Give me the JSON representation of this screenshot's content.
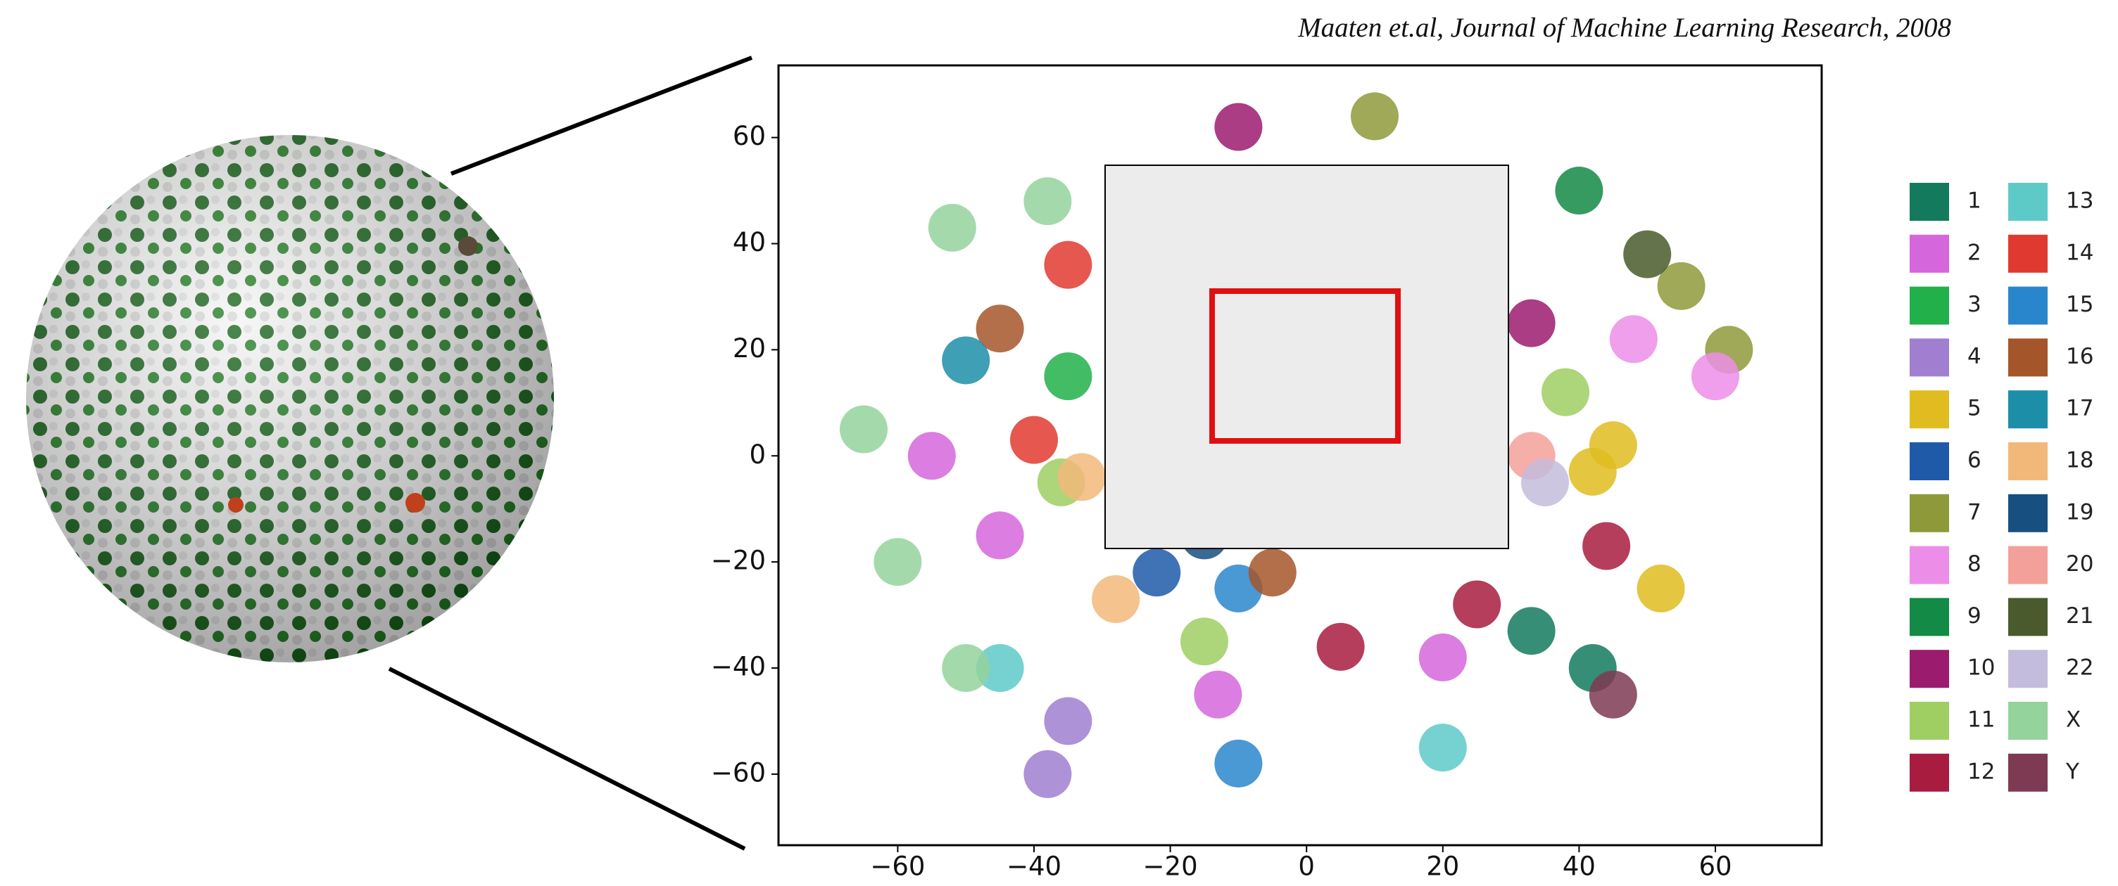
{
  "citation": "Maaten et.al, Journal of Machine Learning Research, 2008",
  "chart_data": {
    "type": "scatter",
    "xlim": [
      -77.5,
      75.6
    ],
    "ylim": [
      -73.4,
      73.6
    ],
    "xticks": [
      {
        "value": -60,
        "label": "−60"
      },
      {
        "value": -40,
        "label": "−40"
      },
      {
        "value": -20,
        "label": "−20"
      },
      0,
      20,
      40,
      60
    ],
    "yticks": [
      {
        "value": -60,
        "label": "−60"
      },
      {
        "value": -40,
        "label": "−40"
      },
      {
        "value": -20,
        "label": "−20"
      },
      0,
      20,
      40,
      60
    ],
    "series": [
      {
        "name": "1",
        "color": "#137a5e",
        "x": [
          33,
          42
        ],
        "values": [
          -33,
          -40
        ]
      },
      {
        "name": "2",
        "color": "#d566dc",
        "x": [
          -55,
          -45,
          -13,
          20
        ],
        "values": [
          0,
          -15,
          -45,
          -38
        ]
      },
      {
        "name": "3",
        "color": "#22b04b",
        "x": [
          -35
        ],
        "values": [
          15
        ]
      },
      {
        "name": "4",
        "color": "#a07fd0",
        "x": [
          -35,
          -38
        ],
        "values": [
          -50,
          -60
        ]
      },
      {
        "name": "5",
        "color": "#e0bc20",
        "x": [
          45,
          52,
          42
        ],
        "values": [
          2,
          -25,
          -3
        ]
      },
      {
        "name": "6",
        "color": "#1e5aa8",
        "x": [
          -22
        ],
        "values": [
          -22
        ]
      },
      {
        "name": "7",
        "color": "#8e9a3a",
        "x": [
          10,
          55,
          62
        ],
        "values": [
          64,
          32,
          20
        ]
      },
      {
        "name": "8",
        "color": "#ec8ee8",
        "x": [
          60,
          48
        ],
        "values": [
          15,
          22
        ]
      },
      {
        "name": "9",
        "color": "#138a45",
        "x": [
          40
        ],
        "values": [
          50
        ]
      },
      {
        "name": "10",
        "color": "#9b1b6e",
        "x": [
          -10,
          33
        ],
        "values": [
          62,
          25
        ]
      },
      {
        "name": "11",
        "color": "#9fce62",
        "x": [
          -36,
          38,
          -15
        ],
        "values": [
          -5,
          12,
          -35
        ]
      },
      {
        "name": "12",
        "color": "#a81c40",
        "x": [
          5,
          44,
          25
        ],
        "values": [
          -36,
          -17,
          -28
        ]
      },
      {
        "name": "13",
        "color": "#5ecac8",
        "x": [
          -45,
          20
        ],
        "values": [
          -40,
          -55
        ]
      },
      {
        "name": "14",
        "color": "#e03a30",
        "x": [
          -35,
          -40
        ],
        "values": [
          36,
          3
        ]
      },
      {
        "name": "15",
        "color": "#2a86cc",
        "x": [
          -10,
          -10
        ],
        "values": [
          -25,
          -58
        ]
      },
      {
        "name": "16",
        "color": "#a4562a",
        "x": [
          -45,
          -5
        ],
        "values": [
          24,
          -22
        ]
      },
      {
        "name": "17",
        "color": "#1d8ea8",
        "x": [
          -50
        ],
        "values": [
          18
        ]
      },
      {
        "name": "18",
        "color": "#f2b87a",
        "x": [
          -28,
          -33
        ],
        "values": [
          -27,
          -4
        ]
      },
      {
        "name": "19",
        "color": "#174f80",
        "x": [
          -15
        ],
        "values": [
          -15
        ]
      },
      {
        "name": "20",
        "color": "#f4a09a",
        "x": [
          33
        ],
        "values": [
          0
        ]
      },
      {
        "name": "21",
        "color": "#4a5a2c",
        "x": [
          50
        ],
        "values": [
          38
        ]
      },
      {
        "name": "22",
        "color": "#c4bcdc",
        "x": [
          35
        ],
        "values": [
          -5
        ]
      },
      {
        "name": "X",
        "color": "#94d39c",
        "x": [
          -52,
          -38,
          -65,
          -60,
          -50
        ],
        "values": [
          43,
          48,
          5,
          -20,
          -40
        ]
      },
      {
        "name": "Y",
        "color": "#7e3a52",
        "x": [
          45
        ],
        "values": [
          -45
        ]
      }
    ]
  }
}
